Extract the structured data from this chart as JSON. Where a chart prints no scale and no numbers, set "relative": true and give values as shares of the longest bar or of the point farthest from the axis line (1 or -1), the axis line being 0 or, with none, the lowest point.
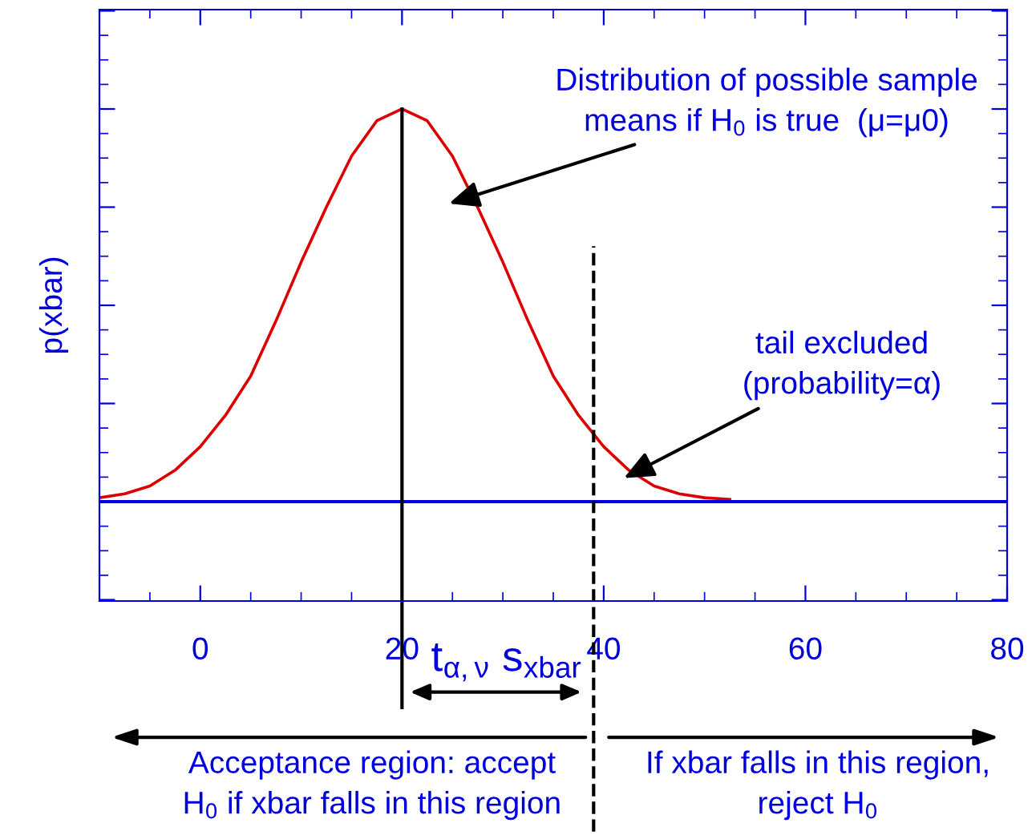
{
  "chart_data": {
    "type": "line",
    "relative": true,
    "ylabel": "p(xbar)",
    "x": [
      -10,
      -7.5,
      -5,
      -2.5,
      0,
      2.5,
      5,
      7.5,
      10,
      12.5,
      15,
      17.5,
      20,
      22.5,
      25,
      27.5,
      30,
      32.5,
      35,
      37.5,
      40,
      42.5,
      45,
      47.5,
      50,
      52.5
    ],
    "series": [
      {
        "color": "#dd0000",
        "values": [
          0.01,
          0.02,
          0.04,
          0.08,
          0.14,
          0.22,
          0.32,
          0.46,
          0.61,
          0.75,
          0.88,
          0.97,
          1,
          0.97,
          0.88,
          0.75,
          0.61,
          0.46,
          0.32,
          0.22,
          0.14,
          0.08,
          0.04,
          0.02,
          0.01,
          0.006
        ]
      }
    ],
    "xlim": [
      -10,
      80
    ],
    "xticks": [
      0,
      20,
      40,
      60,
      80
    ],
    "ref_lines": [
      {
        "axis": "y",
        "value": 0,
        "color": "#0000dd",
        "line_style": "solid"
      },
      {
        "axis": "x",
        "value": 20,
        "color": "#000000",
        "line_style": "solid"
      },
      {
        "axis": "x",
        "value": 39,
        "color": "#000000",
        "line_style": "dashed"
      }
    ],
    "annotations": [
      "Distribution of possible sample\nmeans if H$_{0}$ is true  (μ=μ0)",
      {
        "text": "tail excluded\n(probability=α)",
        "x": 42,
        "y": 0.06
      },
      "t$_{α,ν}$ s$_{xbar}$",
      "Acceptance region: accept\nH$_{0}$ if xbar falls in this region",
      "If xbar falls in this region,\nreject H$_{0}$"
    ],
    "grid": false,
    "marker": "none",
    "line_style": "solid"
  }
}
